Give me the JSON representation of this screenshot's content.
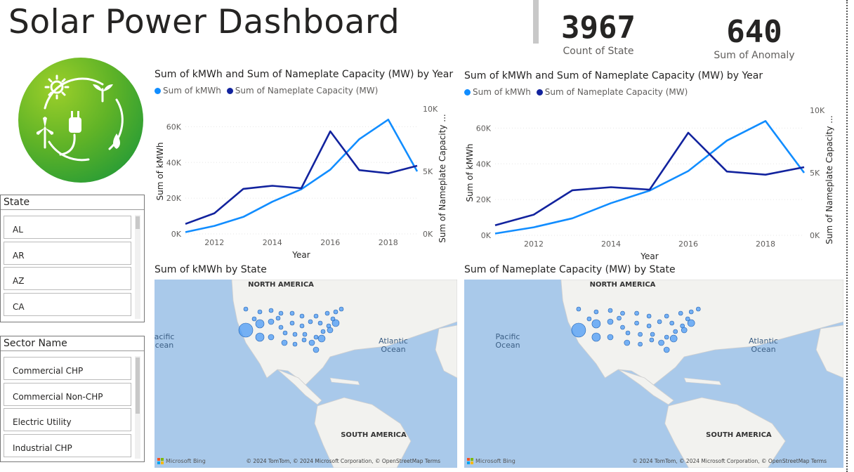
{
  "header": {
    "title": "Solar Power Dashboard"
  },
  "kpis": [
    {
      "value": "3967",
      "label": "Count of State"
    },
    {
      "value": "640",
      "label": "Sum of Anomaly"
    }
  ],
  "slicers": {
    "state": {
      "label": "State",
      "items": [
        "AL",
        "AR",
        "AZ",
        "CA"
      ]
    },
    "sector": {
      "label": "Sector Name",
      "items": [
        "Commercial CHP",
        "Commercial Non-CHP",
        "Electric Utility",
        "Industrial CHP"
      ]
    }
  },
  "line_charts": [
    {
      "title": "Sum of kMWh and Sum of Nameplate Capacity (MW) by Year"
    },
    {
      "title": "Sum of kMWh and Sum of Nameplate Capacity (MW) by Year"
    }
  ],
  "chart_data": [
    {
      "type": "line",
      "title": "Sum of kMWh and Sum of Nameplate Capacity (MW) by Year",
      "xlabel": "Year",
      "ylabel": "Sum of kMWh",
      "y2label": "Sum of Nameplate Capacity ...",
      "x": [
        2011,
        2012,
        2013,
        2014,
        2015,
        2016,
        2017,
        2018,
        2019
      ],
      "x_ticks": [
        "2012",
        "2014",
        "2016",
        "2018"
      ],
      "y_ticks": [
        "0K",
        "20K",
        "40K",
        "60K"
      ],
      "y2_ticks": [
        "0K",
        "5K",
        "10K"
      ],
      "ylim": [
        0,
        70000
      ],
      "y2lim": [
        0,
        10000
      ],
      "legend": "top-left",
      "series": [
        {
          "name": "Sum of kMWh",
          "axis": "left",
          "color": "#118dff",
          "values": [
            1000,
            4500,
            9500,
            18000,
            25000,
            36000,
            53000,
            64000,
            35000
          ]
        },
        {
          "name": "Sum of Nameplate Capacity (MW)",
          "axis": "right",
          "color": "#12239e",
          "values": [
            800,
            1650,
            3600,
            3850,
            3650,
            8200,
            5100,
            4850,
            5450
          ]
        }
      ]
    },
    {
      "type": "line",
      "title": "Sum of kMWh and Sum of Nameplate Capacity (MW) by Year",
      "xlabel": "Year",
      "ylabel": "Sum of kMWh",
      "y2label": "Sum of Nameplate Capacity ...",
      "x": [
        2011,
        2012,
        2013,
        2014,
        2015,
        2016,
        2017,
        2018,
        2019
      ],
      "x_ticks": [
        "2012",
        "2014",
        "2016",
        "2018"
      ],
      "y_ticks": [
        "0K",
        "20K",
        "40K",
        "60K"
      ],
      "y2_ticks": [
        "0K",
        "5K",
        "10K"
      ],
      "ylim": [
        0,
        70000
      ],
      "y2lim": [
        0,
        10000
      ],
      "legend": "top-left",
      "series": [
        {
          "name": "Sum of kMWh",
          "axis": "left",
          "color": "#118dff",
          "values": [
            1000,
            4500,
            9500,
            18000,
            25000,
            36000,
            53000,
            64000,
            35000
          ]
        },
        {
          "name": "Sum of Nameplate Capacity (MW)",
          "axis": "right",
          "color": "#12239e",
          "values": [
            800,
            1650,
            3600,
            3850,
            3650,
            8200,
            5100,
            4850,
            5450
          ]
        }
      ]
    }
  ],
  "maps": [
    {
      "title": "Sum of kMWh by State",
      "labels": {
        "north_america": "NORTH AMERICA",
        "pacific": "Pacific\nOcean",
        "atlantic": "Atlantic\nOcean",
        "south_america": "SOUTH AMERICA"
      },
      "pacific_clipped": "acific\ncean",
      "attribution": "© 2024 TomTom, © 2024 Microsoft Corporation, © OpenStreetMap  Terms",
      "brand": "Microsoft Bing"
    },
    {
      "title": "Sum of Nameplate Capacity (MW) by State",
      "labels": {
        "north_america": "NORTH AMERICA",
        "pacific": "Pacific\nOcean",
        "atlantic": "Atlantic\nOcean",
        "south_america": "SOUTH AMERICA"
      },
      "attribution": "© 2024 TomTom, © 2024 Microsoft Corporation, © OpenStreetMap  Terms",
      "brand": "Microsoft Bing"
    }
  ],
  "colors": {
    "series_light": "#118dff",
    "series_dark": "#12239e",
    "map_water": "#a9c9ea",
    "map_land": "#f2f2ef",
    "bubble": "#4a9af5"
  }
}
